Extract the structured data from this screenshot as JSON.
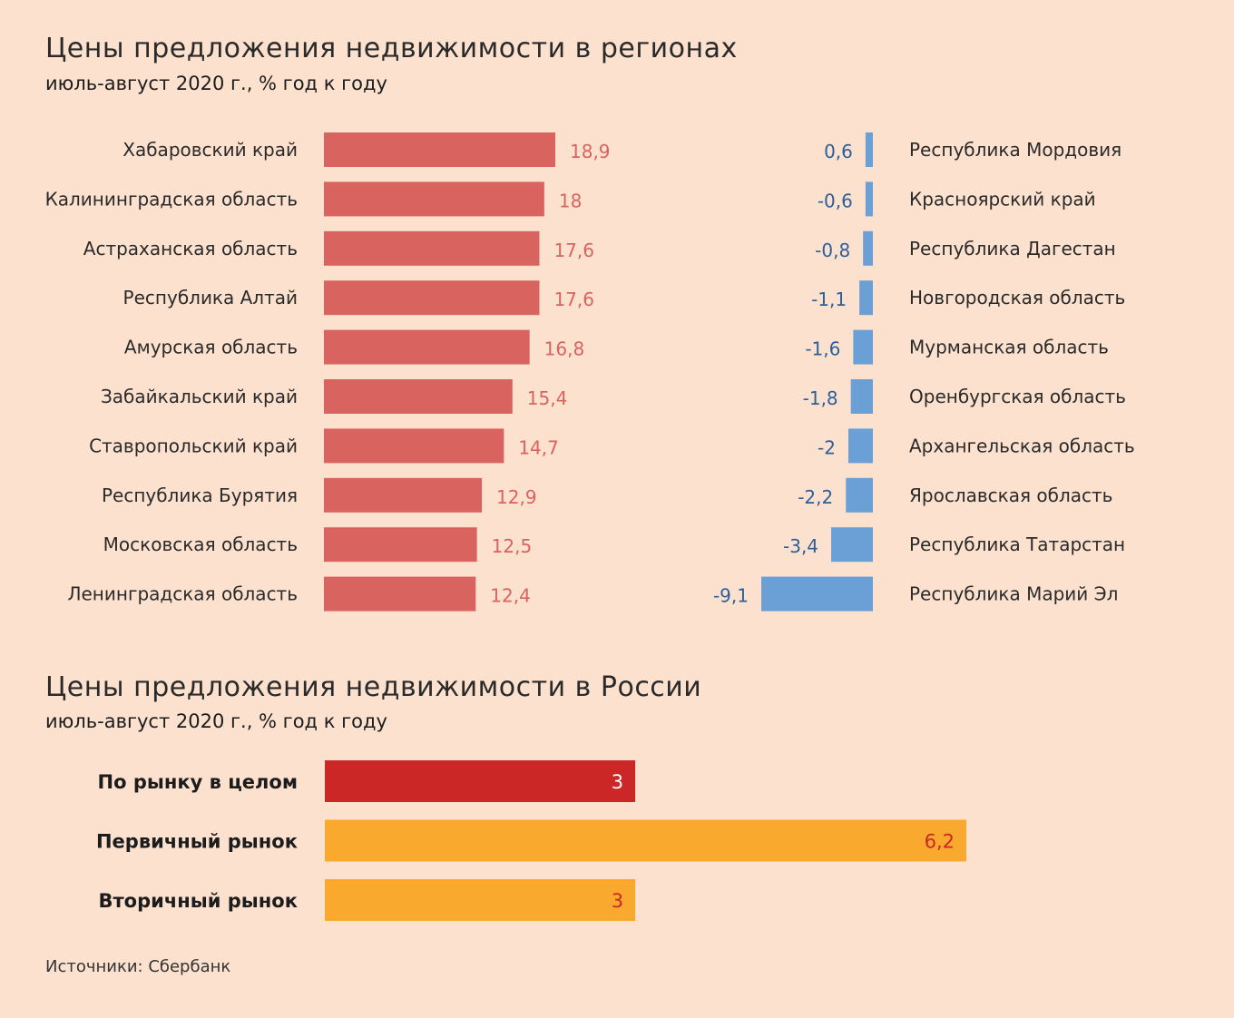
{
  "charts_text": {
    "regions_title": "Цены предложения недвижимости в регионах",
    "regions_subtitle": "июль-август 2020 г., % год к году",
    "russia_title": "Цены предложения недвижимости в России",
    "russia_subtitle": "июль-август 2020 г., % год к году",
    "source": "Источники: Сбербанк"
  },
  "colors": {
    "positive": "#d9635f",
    "positive_label": "#d9635f",
    "negative": "#6aa0d6",
    "negative_label": "#2b5f9a",
    "market_total": "#cc2727",
    "market_segment": "#f9a92e",
    "market_label_on_total": "#ffffff",
    "market_label_on_segment": "#cc2727",
    "background": "#fde1cf"
  },
  "chart_data": [
    {
      "type": "bar",
      "orientation": "horizontal",
      "title": "Цены предложения недвижимости в регионах",
      "subtitle": "июль-август 2020 г., % год к году",
      "panel": "top-growth",
      "categories": [
        "Хабаровский край",
        "Калининградская область",
        "Астраханская область",
        "Республика Алтай",
        "Амурская область",
        "Забайкальский край",
        "Ставропольский край",
        "Республика Бурятия",
        "Московская область",
        "Ленинградская область"
      ],
      "values": [
        18.9,
        18,
        17.6,
        17.6,
        16.8,
        15.4,
        14.7,
        12.9,
        12.5,
        12.4
      ],
      "value_labels": [
        "18,9",
        "18",
        "17,6",
        "17,6",
        "16,8",
        "15,4",
        "14,7",
        "12,9",
        "12,5",
        "12,4"
      ]
    },
    {
      "type": "bar",
      "orientation": "horizontal",
      "panel": "bottom-growth",
      "categories": [
        "Республика Мордовия",
        "Красноярский край",
        "Республика Дагестан",
        "Новгородская область",
        "Мурманская область",
        "Оренбургская область",
        "Архангельская область",
        "Ярославская область",
        "Республика Татарстан",
        "Республика Марий Эл"
      ],
      "values": [
        0.6,
        -0.6,
        -0.8,
        -1.1,
        -1.6,
        -1.8,
        -2,
        -2.2,
        -3.4,
        -9.1
      ],
      "value_labels": [
        "0,6",
        "-0,6",
        "-0,8",
        "-1,1",
        "-1,6",
        "-1,8",
        "-2",
        "-2,2",
        "-3,4",
        "-9,1"
      ]
    },
    {
      "type": "bar",
      "orientation": "horizontal",
      "title": "Цены предложения недвижимости в России",
      "subtitle": "июль-август 2020 г., % год к году",
      "categories": [
        "По рынку в целом",
        "Первичный рынок",
        "Вторичный рынок"
      ],
      "values": [
        3,
        6.2,
        3
      ],
      "value_labels": [
        "3",
        "6,2",
        "3"
      ]
    }
  ]
}
